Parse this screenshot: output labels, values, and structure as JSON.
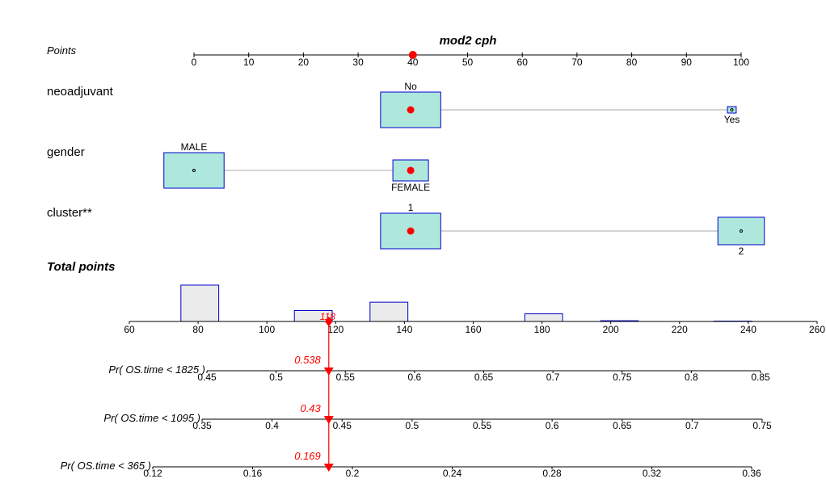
{
  "chart_data": {
    "type": "nomogram",
    "title": "mod2 cph",
    "points_axis": {
      "label": "Points",
      "ticks": [
        0,
        10,
        20,
        30,
        40,
        50,
        60,
        70,
        80,
        90,
        100
      ],
      "marker": 40
    },
    "variables": [
      {
        "name": "neoadjuvant",
        "levels": [
          {
            "label": "No",
            "points": 39.6,
            "box_width_pts": 11,
            "box_height": 44,
            "selected": true,
            "label_pos": "above"
          },
          {
            "label": "Yes",
            "points": 98.3,
            "box_width_pts": 1.6,
            "box_height": 8,
            "selected": false,
            "label_pos": "below"
          }
        ]
      },
      {
        "name": "gender",
        "levels": [
          {
            "label": "MALE",
            "points": 0,
            "box_width_pts": 11,
            "box_height": 44,
            "selected": false,
            "label_pos": "above"
          },
          {
            "label": "FEMALE",
            "points": 39.6,
            "box_width_pts": 6.5,
            "box_height": 26,
            "selected": true,
            "label_pos": "below"
          }
        ]
      },
      {
        "name": "cluster**",
        "levels": [
          {
            "label": "1",
            "points": 39.6,
            "box_width_pts": 11,
            "box_height": 44,
            "selected": true,
            "label_pos": "above"
          },
          {
            "label": "2",
            "points": 100,
            "box_width_pts": 8.5,
            "box_height": 34,
            "selected": false,
            "label_pos": "below"
          }
        ]
      }
    ],
    "total_points": {
      "label": "Total points",
      "ticks": [
        60,
        80,
        100,
        120,
        140,
        160,
        180,
        200,
        220,
        240,
        260
      ],
      "marker": 118,
      "marker_label": "118",
      "histogram": [
        {
          "from": 75,
          "to": 86,
          "height": 1.0
        },
        {
          "from": 108,
          "to": 119,
          "height": 0.3
        },
        {
          "from": 130,
          "to": 141,
          "height": 0.53
        },
        {
          "from": 175,
          "to": 186,
          "height": 0.21
        },
        {
          "from": 197,
          "to": 208,
          "height": 0.02
        },
        {
          "from": 230,
          "to": 241,
          "height": 0.01
        }
      ]
    },
    "probability_axes": [
      {
        "label": "Pr( OS.time < 1825 )",
        "ticks": [
          0.45,
          0.5,
          0.55,
          0.6,
          0.65,
          0.7,
          0.75,
          0.8,
          0.85
        ],
        "tick_labels": [
          "0.45",
          "0.5",
          "0.55",
          "0.6",
          "0.65",
          "0.7",
          "0.75",
          "0.8",
          "0.85"
        ],
        "value": 0.538,
        "value_label": "0.538"
      },
      {
        "label": "Pr( OS.time < 1095 )",
        "ticks": [
          0.35,
          0.4,
          0.45,
          0.5,
          0.55,
          0.6,
          0.65,
          0.7,
          0.75
        ],
        "tick_labels": [
          "0.35",
          "0.4",
          "0.45",
          "0.5",
          "0.55",
          "0.6",
          "0.65",
          "0.7",
          "0.75"
        ],
        "value": 0.43,
        "value_label": "0.43"
      },
      {
        "label": "Pr( OS.time < 365 )",
        "ticks": [
          0.12,
          0.16,
          0.2,
          0.24,
          0.28,
          0.32,
          0.36
        ],
        "tick_labels": [
          "0.12",
          "0.16",
          "0.2",
          "0.24",
          "0.28",
          "0.32",
          "0.36"
        ],
        "value": 0.169,
        "value_label": "0.169"
      }
    ],
    "colors": {
      "box_fill": "#aee8dc",
      "box_stroke": "#0000cc",
      "marker": "#ff0000",
      "connector": "#aaaaaa",
      "hist_fill": "#ebebeb",
      "hist_stroke": "#0000cc"
    }
  }
}
